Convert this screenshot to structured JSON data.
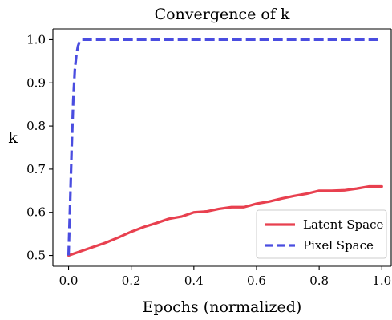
{
  "chart_data": {
    "type": "line",
    "title": "Convergence of k",
    "xlabel": "Epochs (normalized)",
    "ylabel": "k",
    "xlim": [
      -0.05,
      1.03
    ],
    "ylim": [
      0.475,
      1.025
    ],
    "xticks": [
      0.0,
      0.2,
      0.4,
      0.6,
      0.8,
      1.0
    ],
    "xtick_labels": [
      "0.0",
      "0.2",
      "0.4",
      "0.6",
      "0.8",
      "1.0"
    ],
    "yticks": [
      0.5,
      0.6,
      0.7,
      0.8,
      0.9,
      1.0
    ],
    "ytick_labels": [
      "0.5",
      "0.6",
      "0.7",
      "0.8",
      "0.9",
      "1.0"
    ],
    "grid": false,
    "legend_position": "lower-right",
    "series": [
      {
        "name": "Latent Space",
        "color": "#e8404f",
        "line_style": "solid",
        "x": [
          0.0,
          0.04,
          0.08,
          0.12,
          0.16,
          0.2,
          0.24,
          0.28,
          0.32,
          0.36,
          0.4,
          0.44,
          0.48,
          0.52,
          0.56,
          0.6,
          0.64,
          0.68,
          0.72,
          0.76,
          0.8,
          0.84,
          0.88,
          0.92,
          0.96,
          1.0
        ],
        "y": [
          0.5,
          0.51,
          0.52,
          0.53,
          0.542,
          0.555,
          0.566,
          0.575,
          0.585,
          0.59,
          0.6,
          0.602,
          0.608,
          0.612,
          0.612,
          0.62,
          0.625,
          0.632,
          0.638,
          0.643,
          0.65,
          0.65,
          0.651,
          0.655,
          0.66,
          0.66
        ]
      },
      {
        "name": "Pixel Space",
        "color": "#4a4de0",
        "line_style": "dashed",
        "x": [
          0.0,
          0.005,
          0.01,
          0.015,
          0.02,
          0.025,
          0.03,
          0.035,
          0.04,
          0.05,
          0.2,
          0.4,
          0.6,
          0.8,
          1.0
        ],
        "y": [
          0.5,
          0.62,
          0.75,
          0.86,
          0.93,
          0.965,
          0.985,
          0.995,
          1.0,
          1.0,
          1.0,
          1.0,
          1.0,
          1.0,
          1.0
        ]
      }
    ]
  }
}
